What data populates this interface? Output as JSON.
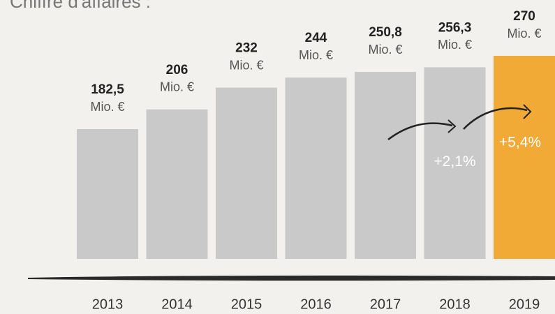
{
  "chart_data": {
    "type": "bar",
    "title": "Chiffre d'affaires :",
    "categories": [
      "2013",
      "2014",
      "2015",
      "2016",
      "2017",
      "2018",
      "2019"
    ],
    "values": [
      182.5,
      206,
      232,
      244,
      250.8,
      256.3,
      270
    ],
    "value_labels": [
      "182,5",
      "206",
      "232",
      "244",
      "250,8",
      "256,3",
      "270"
    ],
    "unit_label": "Mio. €",
    "colors": [
      "#c9c9c9",
      "#c9c9c9",
      "#c9c9c9",
      "#c9c9c9",
      "#c9c9c9",
      "#c9c9c9",
      "#f0aa35"
    ],
    "ylim": [
      27.5,
      320
    ],
    "annotations": [
      {
        "text": "+2,1%",
        "category": 5
      },
      {
        "text": "+5,4%",
        "category": 6
      }
    ]
  }
}
